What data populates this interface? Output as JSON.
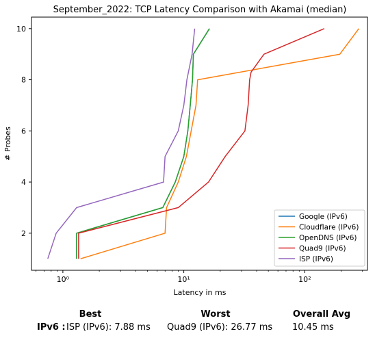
{
  "chart_data": {
    "type": "line",
    "title": "September_2022: TCP Latency Comparison with Akamai (median)",
    "xlabel": "Latency in ms",
    "ylabel": "# Probes",
    "xscale": "log",
    "xlim": [
      0.55,
      330
    ],
    "ylim": [
      0.55,
      10.45
    ],
    "xticks": [
      1,
      10,
      100
    ],
    "xtick_labels": [
      "10⁰",
      "10¹",
      "10²"
    ],
    "yticks": [
      2,
      4,
      6,
      8,
      10
    ],
    "ytick_labels": [
      "2",
      "4",
      "6",
      "8",
      "10"
    ],
    "grid": false,
    "legend_position": "lower-right",
    "series": [
      {
        "name": "Google (IPv6)",
        "color": "#1f77b4",
        "x": [
          1.3,
          1.3,
          6.7,
          8.5,
          10,
          10.8,
          11.3,
          11.8,
          12,
          16.3
        ],
        "y": [
          1,
          2,
          3,
          4,
          5,
          6,
          7,
          8,
          9,
          10
        ]
      },
      {
        "name": "Cloudflare (IPv6)",
        "color": "#ff7f0e",
        "x": [
          1.4,
          7,
          7.2,
          9,
          10.5,
          12.6,
          12.8,
          13,
          195,
          280
        ],
        "y": [
          1,
          2,
          3,
          4,
          5,
          7,
          7.5,
          8,
          9,
          10
        ]
      },
      {
        "name": "OpenDNS (IPv6)",
        "color": "#2ca02c",
        "x": [
          1.3,
          1.3,
          6.7,
          8.5,
          10,
          10.8,
          11.3,
          11.8,
          12,
          16.3
        ],
        "y": [
          1,
          2,
          3,
          4,
          5,
          6,
          7,
          8,
          9,
          10
        ]
      },
      {
        "name": "Quad9 (IPv6)",
        "color": "#d62728",
        "x": [
          1.35,
          1.35,
          9,
          16,
          22,
          32,
          34,
          35,
          36,
          46,
          145
        ],
        "y": [
          1,
          2,
          3,
          4,
          5,
          6,
          7,
          8,
          8.3,
          9,
          10
        ]
      },
      {
        "name": "ISP (IPv6)",
        "color": "#9467bd",
        "x": [
          0.75,
          0.88,
          1.3,
          6.8,
          7,
          9,
          10,
          10.3,
          10.6,
          11.7,
          12.3
        ],
        "y": [
          1,
          2,
          3,
          4,
          5,
          6,
          7,
          7.5,
          8,
          9,
          10
        ]
      }
    ]
  },
  "summary": {
    "best_header": "Best",
    "worst_header": "Worst",
    "avg_header": "Overall Avg",
    "row_label": "IPv6 :",
    "best_value": "ISP (IPv6): 7.88 ms",
    "worst_value": "Quad9 (IPv6): 26.77 ms",
    "avg_value": "10.45 ms"
  }
}
